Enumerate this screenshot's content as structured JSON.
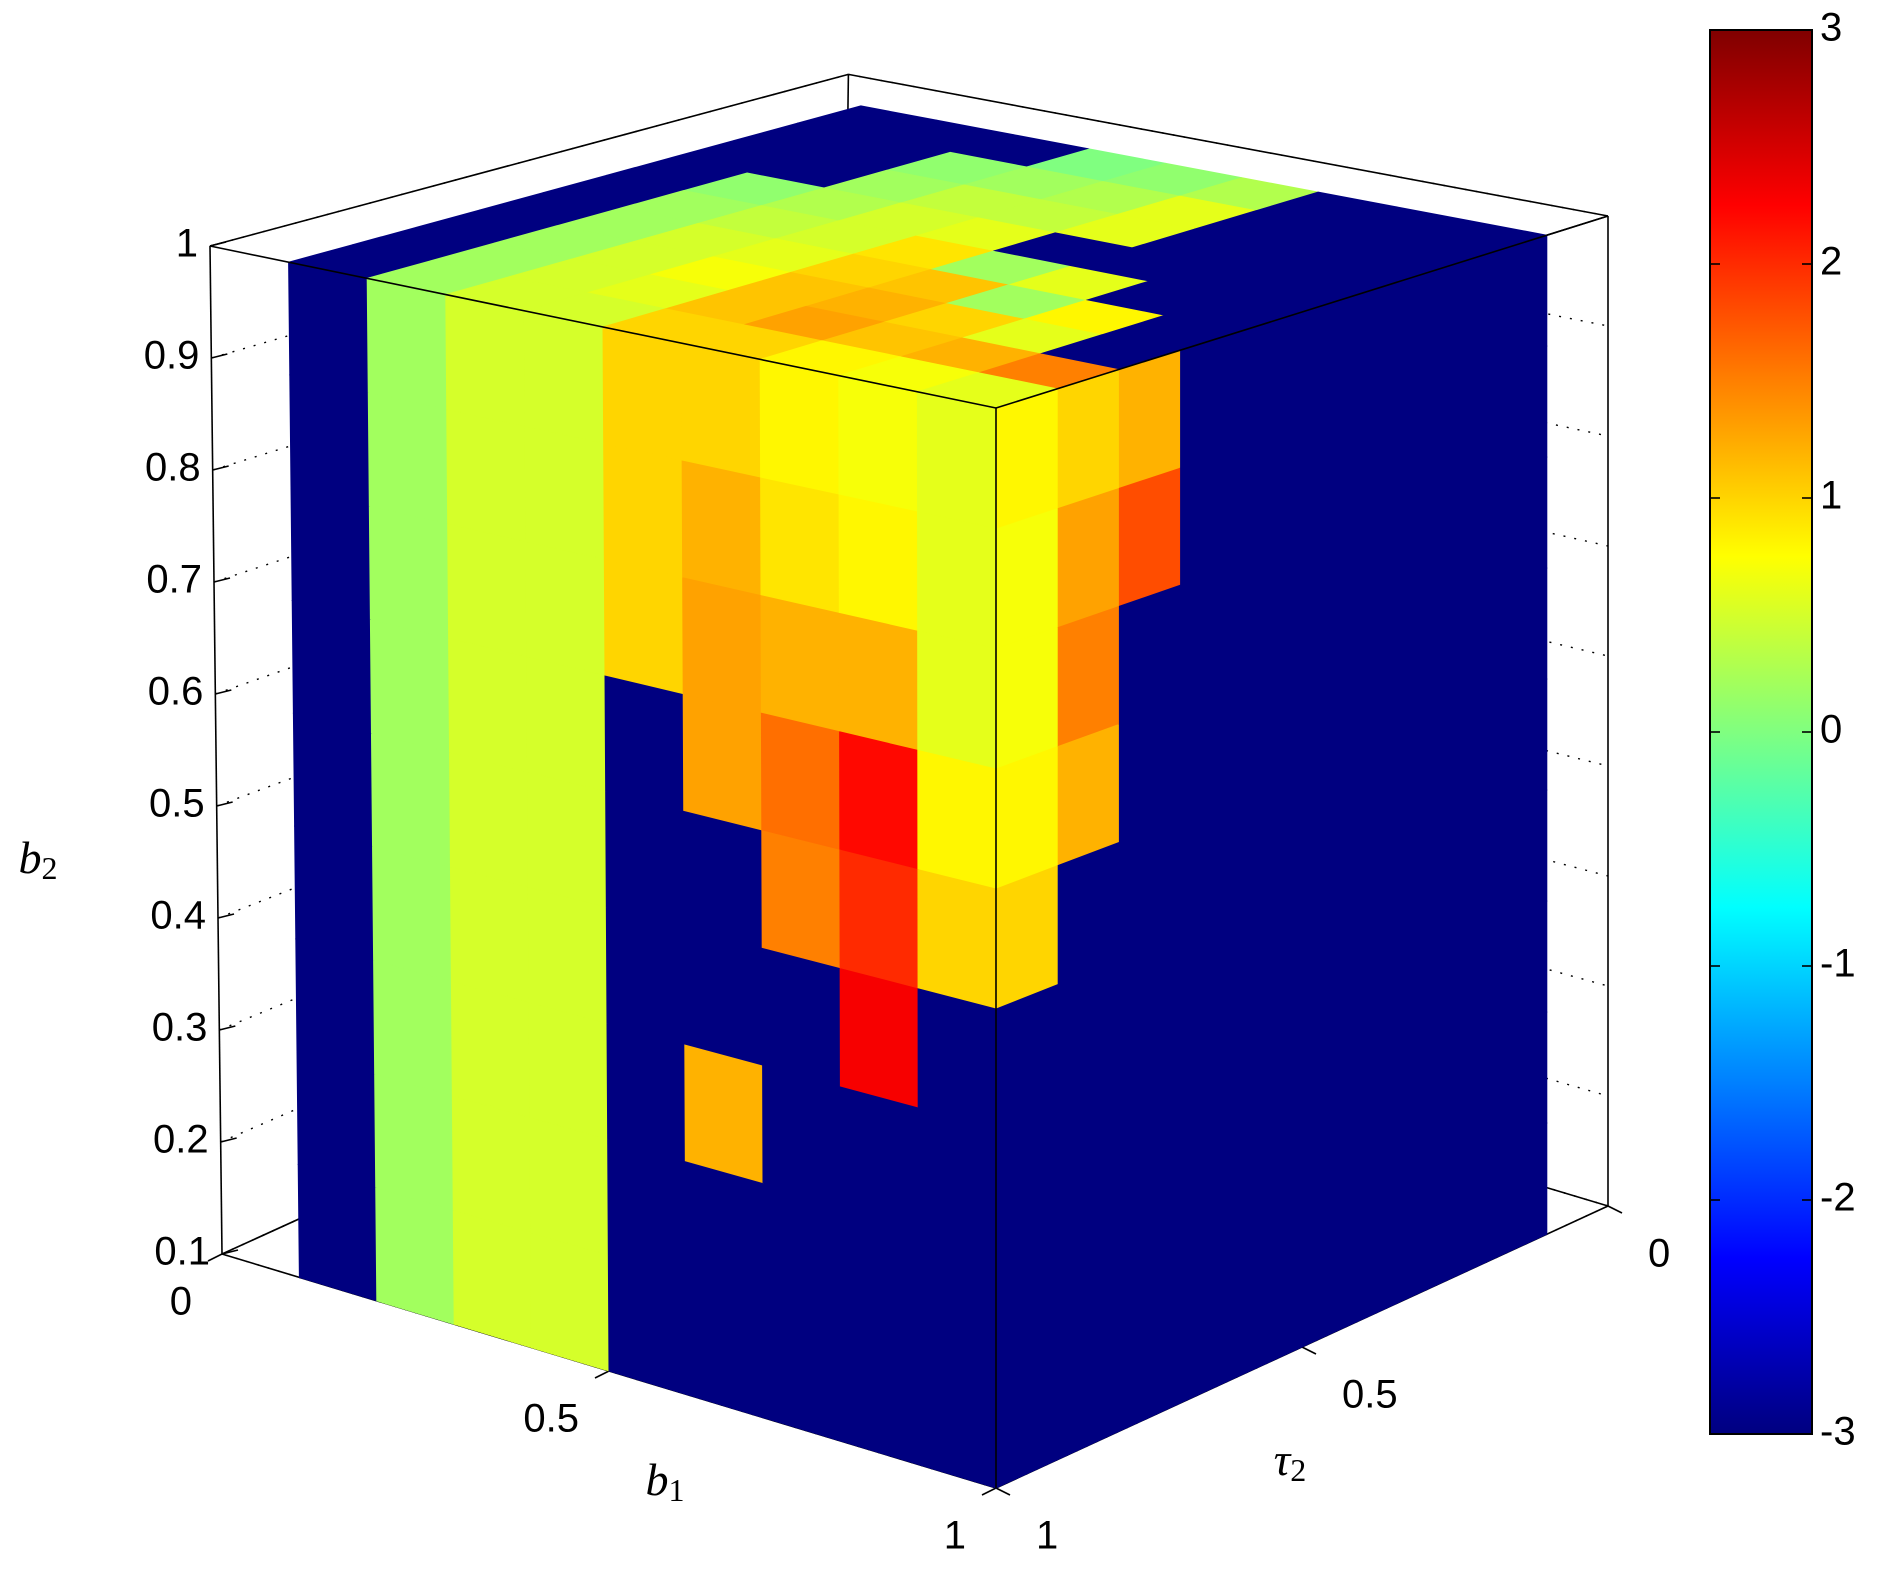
{
  "chart_data": {
    "type": "slice3d",
    "xlabel": {
      "base": "b",
      "sub": "1"
    },
    "ylabel": {
      "base": "τ",
      "sub": "2"
    },
    "zlabel": {
      "base": "b",
      "sub": "2"
    },
    "xlim": [
      0,
      1
    ],
    "ylim": [
      0,
      1
    ],
    "zlim": [
      0.1,
      1
    ],
    "xticks": [
      0,
      0.5,
      1
    ],
    "yticks": [
      0,
      0.5,
      1
    ],
    "zticks": [
      0.1,
      0.2,
      0.3,
      0.4,
      0.5,
      0.6,
      0.7,
      0.8,
      0.9,
      1
    ],
    "grid": true,
    "colormap": "jet",
    "clim": [
      -3,
      3
    ],
    "cticks": [
      -3,
      -2,
      -1,
      0,
      1,
      2,
      3
    ],
    "cell_edges": {
      "b1": [
        0.1,
        0.2,
        0.3,
        0.4,
        0.5,
        0.6,
        0.7,
        0.8,
        0.9,
        1
      ],
      "tau2": [
        0.1,
        0.2,
        0.3,
        0.4,
        0.5,
        0.6,
        0.7,
        0.8,
        0.9,
        1
      ],
      "b2": [
        0.1,
        0.2,
        0.3,
        0.4,
        0.5,
        0.6,
        0.7,
        0.8,
        0.9,
        1
      ]
    },
    "slices": [
      {
        "plane": "b2",
        "at": 1,
        "rows": "tau2",
        "cols": "b1",
        "values": [
          [
            -3,
            -3,
            -3,
            0,
            0.1,
            0.3,
            -3,
            -3,
            -3
          ],
          [
            -3,
            -3,
            0.1,
            0.2,
            0.3,
            0.6,
            -3,
            -3,
            -3
          ],
          [
            -3,
            -3,
            0.2,
            0.4,
            0.4,
            0.6,
            -3,
            -3,
            -3
          ],
          [
            -3,
            0.1,
            0.3,
            0.5,
            0.6,
            -3,
            -3,
            -3,
            -3
          ],
          [
            -3,
            0.2,
            0.4,
            0.5,
            0.9,
            0.2,
            0.6,
            -3,
            -3
          ],
          [
            -3,
            0.2,
            0.5,
            0.6,
            1.0,
            1.1,
            0.2,
            0.8,
            -3
          ],
          [
            -3,
            0.2,
            0.5,
            0.7,
            1.1,
            1.2,
            1.0,
            0.6,
            -3
          ],
          [
            -3,
            0.2,
            0.5,
            0.6,
            1.1,
            1.3,
            1.1,
            1.2,
            1.5
          ],
          [
            -3,
            0.2,
            0.5,
            0.5,
            1.0,
            1.0,
            0.8,
            0.7,
            0.6
          ]
        ]
      },
      {
        "plane": "tau2",
        "at": 1,
        "rows": "b2",
        "cols": "b1",
        "values": [
          [
            -3,
            0.2,
            0.5,
            0.5,
            -3,
            -3,
            -3,
            -3,
            -3
          ],
          [
            -3,
            0.2,
            0.5,
            0.5,
            -3,
            -3,
            -3,
            -3,
            -3
          ],
          [
            -3,
            0.2,
            0.5,
            0.5,
            -3,
            1.2,
            -3,
            -3,
            -3
          ],
          [
            -3,
            0.2,
            0.5,
            0.5,
            -3,
            -3,
            -3,
            2.3,
            -3
          ],
          [
            -3,
            0.2,
            0.5,
            0.5,
            -3,
            -3,
            1.5,
            2.0,
            1.0
          ],
          [
            -3,
            0.2,
            0.5,
            0.5,
            -3,
            1.3,
            1.6,
            2.2,
            0.8
          ],
          [
            -3,
            0.2,
            0.5,
            0.5,
            1.0,
            1.3,
            1.2,
            1.2,
            0.6
          ],
          [
            -3,
            0.2,
            0.5,
            0.5,
            1.0,
            1.2,
            0.9,
            0.8,
            0.6
          ],
          [
            -3,
            0.2,
            0.5,
            0.5,
            1.0,
            1.0,
            0.8,
            0.7,
            0.6
          ]
        ]
      },
      {
        "plane": "b1",
        "at": 1,
        "rows": "b2",
        "cols": "tau2",
        "values": [
          [
            -3,
            -3,
            -3,
            -3,
            -3,
            -3,
            -3,
            -3,
            -3
          ],
          [
            -3,
            -3,
            -3,
            -3,
            -3,
            -3,
            -3,
            -3,
            -3
          ],
          [
            -3,
            -3,
            -3,
            -3,
            -3,
            -3,
            -3,
            -3,
            -3
          ],
          [
            -3,
            -3,
            -3,
            -3,
            -3,
            -3,
            -3,
            -3,
            -3
          ],
          [
            -3,
            -3,
            -3,
            -3,
            -3,
            -3,
            -3,
            -3,
            1.0
          ],
          [
            -3,
            -3,
            -3,
            -3,
            -3,
            -3,
            -3,
            1.2,
            0.8
          ],
          [
            -3,
            -3,
            -3,
            -3,
            -3,
            -3,
            -3,
            1.5,
            0.7
          ],
          [
            -3,
            -3,
            -3,
            -3,
            -3,
            -3,
            1.8,
            1.3,
            0.7
          ],
          [
            -3,
            -3,
            -3,
            -3,
            -3,
            -3,
            1.2,
            1.0,
            0.8
          ]
        ]
      }
    ]
  }
}
